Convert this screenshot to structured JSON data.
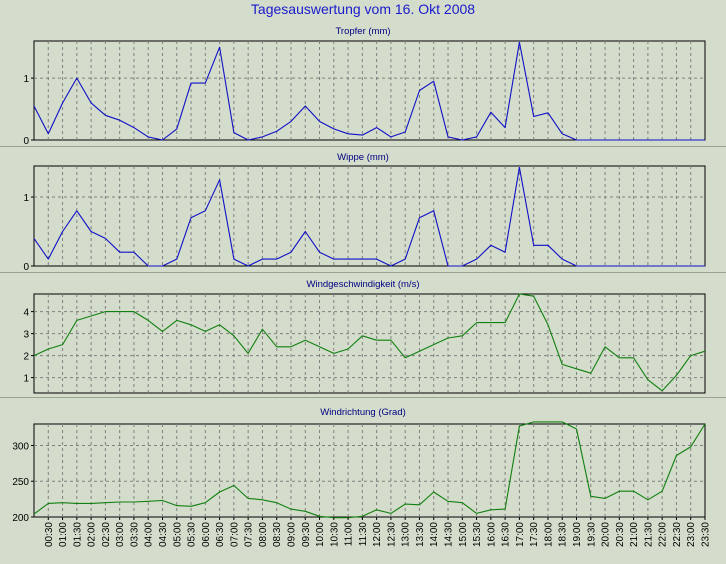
{
  "title": "Tagesauswertung vom 16. Okt 2008",
  "time_labels": [
    "00:30",
    "01:00",
    "01:30",
    "02:00",
    "02:30",
    "03:00",
    "03:30",
    "04:00",
    "04:30",
    "05:00",
    "05:30",
    "06:00",
    "06:30",
    "07:00",
    "07:30",
    "08:00",
    "08:30",
    "09:00",
    "09:30",
    "10:00",
    "10:30",
    "11:00",
    "11:30",
    "12:00",
    "12:30",
    "13:00",
    "13:30",
    "14:00",
    "14:30",
    "15:00",
    "15:30",
    "16:00",
    "16:30",
    "17:00",
    "17:30",
    "18:00",
    "18:30",
    "19:00",
    "19:30",
    "20:00",
    "20:30",
    "21:00",
    "21:30",
    "22:00",
    "22:30",
    "23:00",
    "23:30"
  ],
  "colors": {
    "blue_series": "#1010c8",
    "green_series": "#108010",
    "grid": "#808080",
    "background": "#d4dccb",
    "title": "#1a1acc"
  },
  "chart_data": [
    {
      "type": "line",
      "title": "Tropfer (mm)",
      "ylim": [
        0,
        1.6
      ],
      "yticks": [
        0,
        1
      ],
      "grid": true,
      "series": [
        {
          "values": [
            0.55,
            0.1,
            0.6,
            1.0,
            0.6,
            0.4,
            0.32,
            0.2,
            0.05,
            0,
            0.18,
            0.92,
            0.92,
            1.5,
            0.12,
            0,
            0.05,
            0.14,
            0.3,
            0.55,
            0.3,
            0.18,
            0.1,
            0.08,
            0.2,
            0.05,
            0.13,
            0.8,
            0.95,
            0.05,
            0,
            0.05,
            0.45,
            0.2,
            1.58,
            0.38,
            0.44,
            0.1,
            0,
            0,
            0,
            0,
            0,
            0,
            0,
            0,
            0,
            0
          ]
        }
      ]
    },
    {
      "type": "line",
      "title": "Wippe (mm)",
      "ylim": [
        0,
        1.45
      ],
      "yticks": [
        0,
        1
      ],
      "grid": true,
      "series": [
        {
          "values": [
            0.4,
            0.1,
            0.5,
            0.8,
            0.5,
            0.4,
            0.2,
            0.2,
            0,
            0,
            0.1,
            0.7,
            0.8,
            1.25,
            0.1,
            0,
            0.1,
            0.1,
            0.2,
            0.5,
            0.2,
            0.1,
            0.1,
            0.1,
            0.1,
            0,
            0.1,
            0.7,
            0.8,
            0,
            0,
            0.1,
            0.3,
            0.2,
            1.43,
            0.3,
            0.3,
            0.1,
            0,
            0,
            0,
            0,
            0,
            0,
            0,
            0,
            0,
            0
          ]
        }
      ]
    },
    {
      "type": "line",
      "title": "Windgeschwindigkeit (m/s)",
      "ylim": [
        0.3,
        4.8
      ],
      "yticks": [
        1,
        2,
        3,
        4
      ],
      "grid": true,
      "series": [
        {
          "values": [
            2.0,
            2.3,
            2.5,
            3.6,
            3.8,
            4.0,
            4.0,
            4.0,
            3.6,
            3.1,
            3.6,
            3.4,
            3.1,
            3.4,
            2.9,
            2.1,
            3.2,
            2.4,
            2.4,
            2.7,
            2.4,
            2.1,
            2.3,
            2.9,
            2.7,
            2.7,
            1.9,
            2.2,
            2.5,
            2.8,
            2.9,
            3.5,
            3.5,
            3.5,
            4.8,
            4.7,
            3.4,
            1.6,
            1.4,
            1.2,
            2.4,
            1.9,
            1.9,
            0.9,
            0.4,
            1.1,
            2.0,
            2.2
          ]
        }
      ]
    },
    {
      "type": "line",
      "title": "Windrichtung (Grad)",
      "ylim": [
        200,
        330
      ],
      "yticks": [
        200,
        250,
        300
      ],
      "grid": true,
      "series": [
        {
          "values": [
            204,
            219,
            220,
            219,
            219,
            220,
            221,
            221,
            222,
            223,
            216,
            215,
            220,
            235,
            244,
            226,
            224,
            220,
            211,
            208,
            201,
            199,
            199,
            201,
            210,
            205,
            218,
            217,
            235,
            222,
            220,
            205,
            210,
            211,
            327,
            333,
            333,
            333,
            323,
            229,
            226,
            236,
            236,
            224,
            236,
            286,
            298,
            330
          ]
        }
      ]
    }
  ]
}
